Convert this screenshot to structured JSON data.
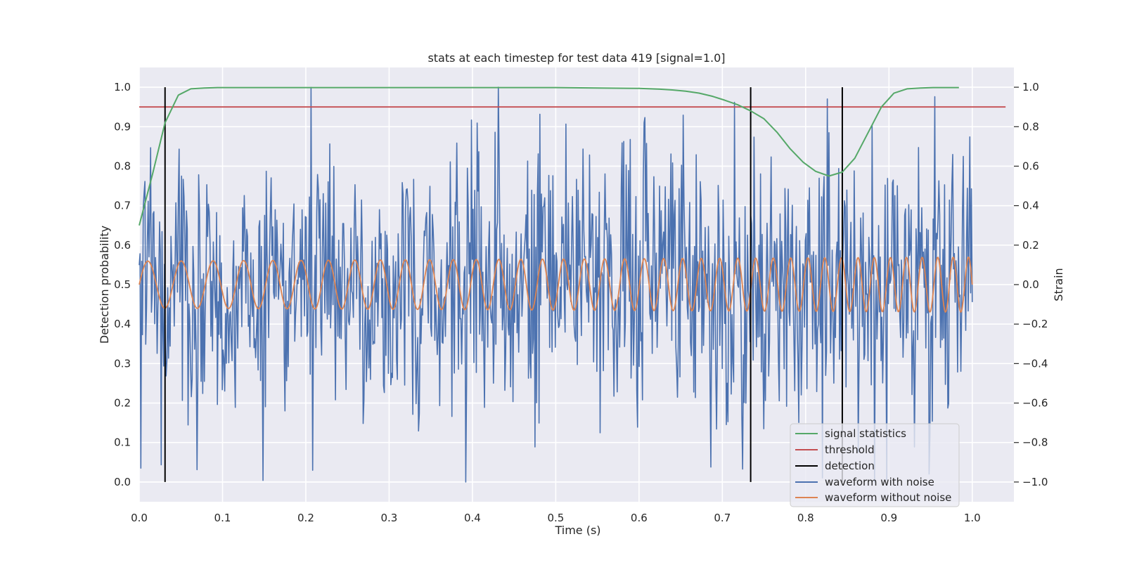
{
  "chart_data": {
    "type": "line",
    "title": "stats at each timestep for test data 419 [signal=1.0]",
    "xlabel": "Time (s)",
    "ylabel_left": "Detection probability",
    "ylabel_right": "Strain",
    "xlim": [
      0.0,
      1.05
    ],
    "ylim_left": [
      -0.05,
      1.05
    ],
    "ylim_right": [
      -1.1,
      1.1
    ],
    "x_ticks": [
      "0.0",
      "0.1",
      "0.2",
      "0.3",
      "0.4",
      "0.5",
      "0.6",
      "0.7",
      "0.8",
      "0.9",
      "1.0"
    ],
    "y_ticks_left": [
      "0.0",
      "0.1",
      "0.2",
      "0.3",
      "0.4",
      "0.5",
      "0.6",
      "0.7",
      "0.8",
      "0.9",
      "1.0"
    ],
    "y_ticks_right": [
      "−1.0",
      "−0.8",
      "−0.6",
      "−0.4",
      "−0.2",
      "0.0",
      "0.2",
      "0.4",
      "0.6",
      "0.8",
      "1.0"
    ],
    "grid": true,
    "legend_position": "bottom-right",
    "colors": {
      "background": "#eaeaf2",
      "grid": "#ffffff",
      "signal_statistics": "#55a868",
      "threshold": "#c44e52",
      "detection": "#000000",
      "waveform_with_noise": "#4c72b0",
      "waveform_without_noise": "#dd8452"
    },
    "series": [
      {
        "name": "signal statistics",
        "axis": "left",
        "x": [
          0.0,
          0.016,
          0.031,
          0.047,
          0.062,
          0.078,
          0.094,
          0.2,
          0.3,
          0.4,
          0.5,
          0.55,
          0.6,
          0.625,
          0.64,
          0.656,
          0.672,
          0.688,
          0.703,
          0.719,
          0.734,
          0.75,
          0.766,
          0.781,
          0.797,
          0.812,
          0.828,
          0.844,
          0.859,
          0.875,
          0.891,
          0.906,
          0.922,
          0.938,
          0.953,
          0.969,
          0.984
        ],
        "y": [
          0.65,
          0.78,
          0.91,
          0.98,
          0.996,
          0.998,
          0.999,
          0.999,
          0.999,
          0.999,
          0.999,
          0.998,
          0.997,
          0.995,
          0.993,
          0.99,
          0.985,
          0.977,
          0.967,
          0.955,
          0.94,
          0.92,
          0.885,
          0.845,
          0.81,
          0.787,
          0.775,
          0.785,
          0.82,
          0.885,
          0.95,
          0.985,
          0.996,
          0.998,
          0.999,
          0.999,
          0.999
        ]
      },
      {
        "name": "threshold",
        "axis": "left",
        "x": [
          0.0,
          1.04
        ],
        "y": [
          0.95,
          0.95
        ]
      },
      {
        "name": "detection",
        "axis": "left",
        "type": "vlines",
        "x": [
          0.031,
          0.734,
          0.844
        ],
        "y_range": [
          0.0,
          1.0
        ]
      },
      {
        "name": "waveform with noise",
        "axis": "right",
        "generated": true,
        "n_samples": 1024,
        "amplitude_range": [
          -1.0,
          1.0
        ]
      },
      {
        "name": "waveform without noise",
        "axis": "right",
        "generated": true,
        "n_samples": 1024,
        "amplitude_range": [
          -0.14,
          0.14
        ]
      }
    ]
  }
}
